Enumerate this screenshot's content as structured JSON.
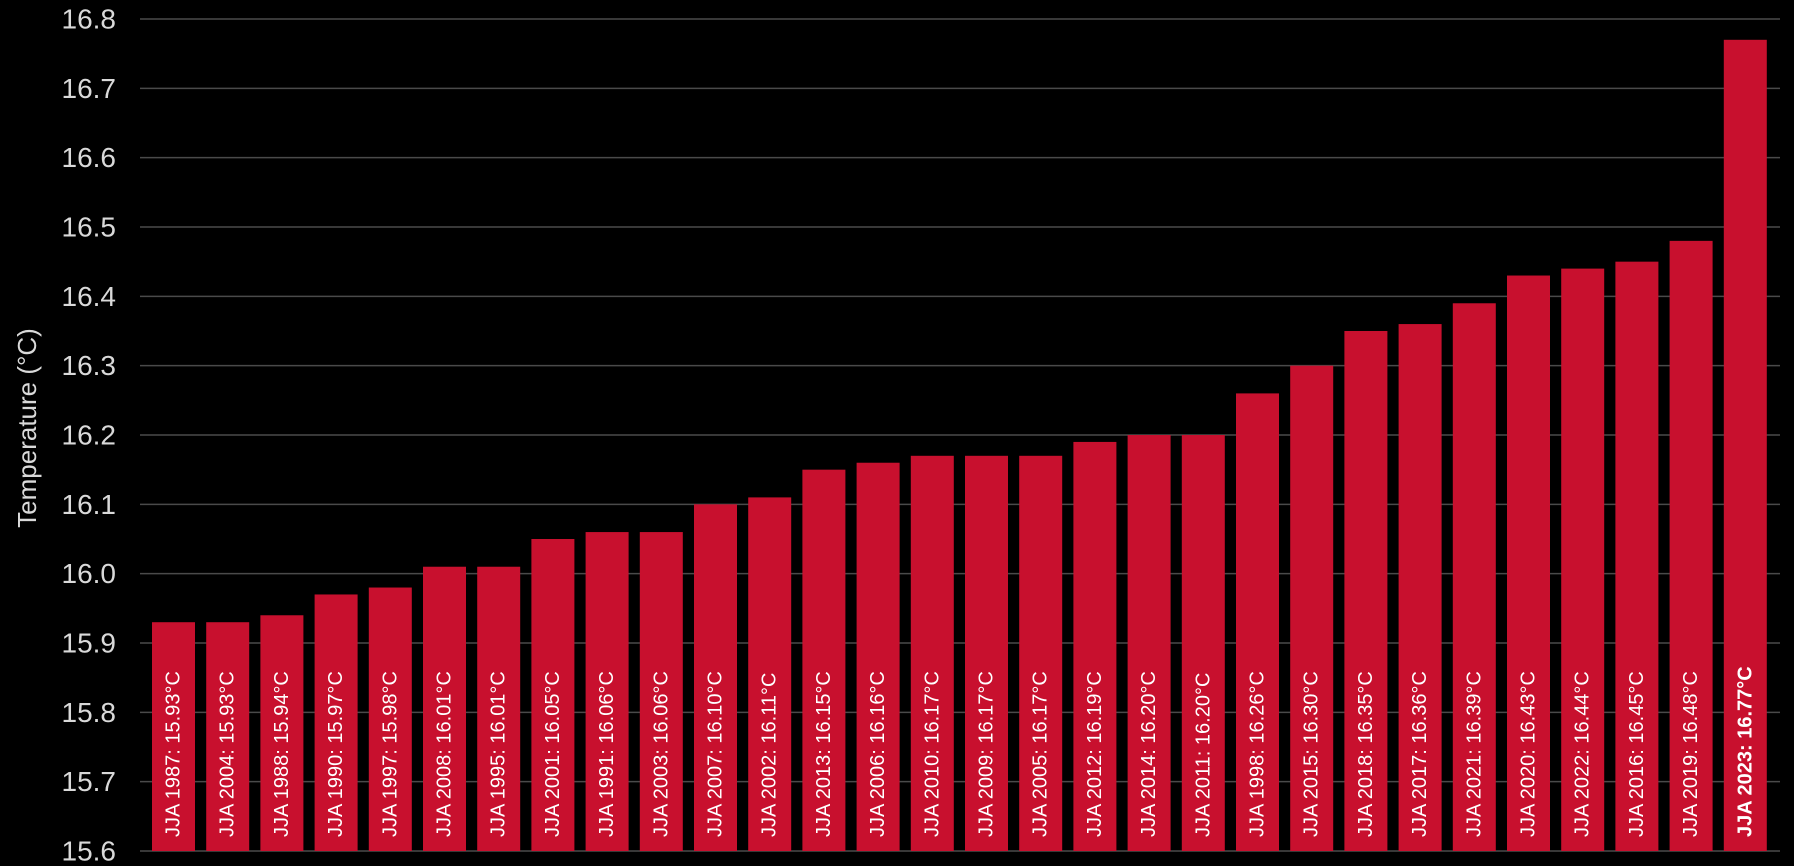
{
  "colors": {
    "background": "#000000",
    "bar": "#c8102e",
    "grid": "#4a4a4a",
    "text": "#d9d9d9",
    "bar_label": "#ffffff"
  },
  "chart_data": {
    "type": "bar",
    "title": "",
    "xlabel": "",
    "ylabel": "Temperature (°C)",
    "ylim": [
      15.6,
      16.8
    ],
    "yticks": [
      "15.6",
      "15.7",
      "15.8",
      "15.9",
      "16.0",
      "16.1",
      "16.2",
      "16.3",
      "16.4",
      "16.5",
      "16.6",
      "16.7",
      "16.8"
    ],
    "grid": true,
    "categories": [
      "JJA 1987",
      "JJA 2004",
      "JJA 1988",
      "JJA 1990",
      "JJA 1997",
      "JJA 2008",
      "JJA 1995",
      "JJA 2001",
      "JJA 1991",
      "JJA 2003",
      "JJA 2007",
      "JJA 2002",
      "JJA 2013",
      "JJA 2006",
      "JJA 2010",
      "JJA 2009",
      "JJA 2005",
      "JJA 2012",
      "JJA 2014",
      "JJA 2011",
      "JJA 1998",
      "JJA 2015",
      "JJA 2018",
      "JJA 2017",
      "JJA 2021",
      "JJA 2020",
      "JJA 2022",
      "JJA 2016",
      "JJA 2019",
      "JJA 2023"
    ],
    "values": [
      15.93,
      15.93,
      15.94,
      15.97,
      15.98,
      16.01,
      16.01,
      16.05,
      16.06,
      16.06,
      16.1,
      16.11,
      16.15,
      16.16,
      16.17,
      16.17,
      16.17,
      16.19,
      16.2,
      16.2,
      16.26,
      16.3,
      16.35,
      16.36,
      16.39,
      16.43,
      16.44,
      16.45,
      16.48,
      16.77
    ],
    "bar_labels": [
      "JJA 1987: 15.93°C",
      "JJA 2004: 15.93°C",
      "JJA 1988: 15.94°C",
      "JJA 1990: 15.97°C",
      "JJA 1997: 15.98°C",
      "JJA 2008: 16.01°C",
      "JJA 1995: 16.01°C",
      "JJA 2001: 16.05°C",
      "JJA 1991: 16.06°C",
      "JJA 2003: 16.06°C",
      "JJA 2007: 16.10°C",
      "JJA 2002: 16.11°C",
      "JJA 2013: 16.15°C",
      "JJA 2006: 16.16°C",
      "JJA 2010: 16.17°C",
      "JJA 2009: 16.17°C",
      "JJA 2005: 16.17°C",
      "JJA 2012: 16.19°C",
      "JJA 2014: 16.20°C",
      "JJA 2011: 16.20°C",
      "JJA 1998: 16.26°C",
      "JJA 2015: 16.30°C",
      "JJA 2018: 16.35°C",
      "JJA 2017: 16.36°C",
      "JJA 2021: 16.39°C",
      "JJA 2020: 16.43°C",
      "JJA 2022: 16.44°C",
      "JJA 2016: 16.45°C",
      "JJA 2019: 16.48°C",
      "JJA 2023: 16.77°C"
    ],
    "highlight": "JJA 2023"
  }
}
